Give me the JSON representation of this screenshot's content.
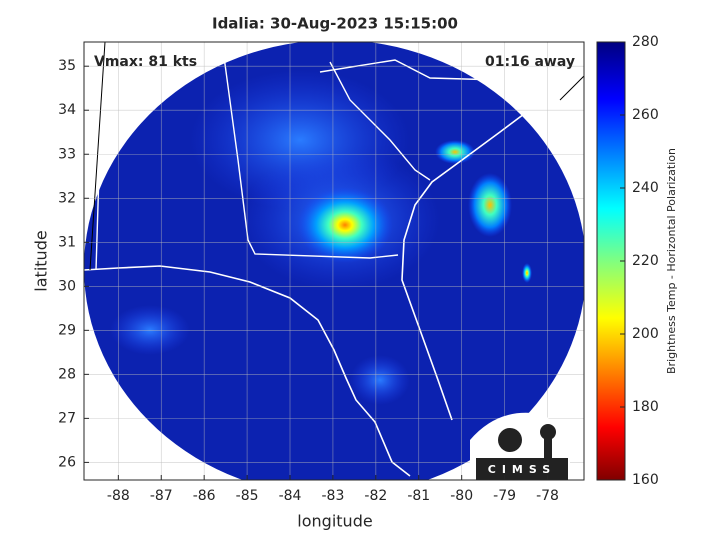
{
  "chart_data": {
    "type": "map",
    "title": "Idalia: 30-Aug-2023 15:15:00",
    "annotations": [
      "Vmax: 81 kts",
      "01:16 away"
    ],
    "x_label": "longitude",
    "y_label": "latitude",
    "xlim": [
      -88.8,
      -77.15
    ],
    "ylim": [
      25.6,
      35.55
    ],
    "xticks": [
      -88,
      -87,
      -86,
      -85,
      -84,
      -83,
      -82,
      -81,
      -80,
      -79,
      -78
    ],
    "yticks": [
      26,
      27,
      28,
      29,
      30,
      31,
      32,
      33,
      34,
      35
    ],
    "grid": true,
    "colorbar": {
      "label": "Brightness Temp - Horizontal Polarization",
      "lim": [
        160,
        280
      ],
      "ticks": [
        160,
        180,
        200,
        220,
        240,
        260,
        280
      ]
    },
    "logo": "CIMSS"
  }
}
